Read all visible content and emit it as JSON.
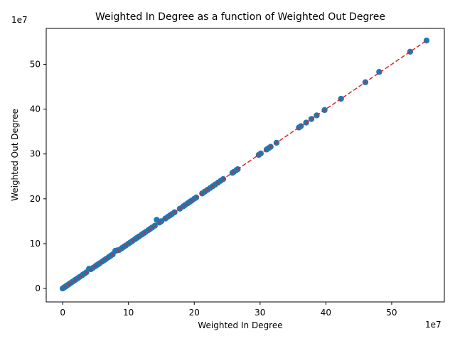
{
  "chart_data": {
    "type": "scatter",
    "title": "Weighted In Degree as a function of Weighted Out Degree",
    "xlabel": "Weighted In Degree",
    "ylabel": "Weighted Out Degree",
    "x_offset_text": "1e7",
    "y_offset_text": "1e7",
    "xlim": [
      -0.25,
      5.8
    ],
    "ylim": [
      -0.3,
      5.8
    ],
    "x_ticks": [
      0,
      1,
      2,
      3,
      4,
      5
    ],
    "y_ticks": [
      0,
      1,
      2,
      3,
      4,
      5
    ],
    "x_tick_labels": [
      "0",
      "10",
      "20",
      "30",
      "40",
      "50"
    ],
    "y_tick_labels": [
      "0",
      "10",
      "20",
      "30",
      "40",
      "50"
    ],
    "grid": false,
    "marker_color": "#1f77b4",
    "fit_line": {
      "x": [
        0.0,
        5.53
      ],
      "y": [
        0.0,
        5.53
      ],
      "color": "#d62728",
      "style": "dashed"
    },
    "points": {
      "x": [
        0.0,
        0.01,
        0.02,
        0.03,
        0.04,
        0.05,
        0.06,
        0.08,
        0.1,
        0.12,
        0.15,
        0.18,
        0.2,
        0.23,
        0.26,
        0.3,
        0.33,
        0.36,
        0.4,
        0.43,
        0.46,
        0.5,
        0.53,
        0.56,
        0.6,
        0.63,
        0.66,
        0.7,
        0.73,
        0.76,
        0.8,
        0.83,
        0.86,
        0.9,
        0.93,
        0.96,
        1.0,
        1.03,
        1.06,
        1.1,
        1.13,
        1.16,
        1.2,
        1.23,
        1.26,
        1.3,
        1.33,
        1.36,
        1.4,
        1.43,
        1.47,
        1.5,
        1.56,
        1.6,
        1.63,
        1.66,
        1.7,
        1.78,
        1.83,
        1.86,
        1.9,
        1.93,
        1.96,
        2.0,
        2.03,
        2.12,
        2.16,
        2.2,
        2.24,
        2.28,
        2.32,
        2.36,
        2.4,
        2.44,
        2.58,
        2.6,
        2.64,
        2.66,
        2.98,
        3.01,
        3.1,
        3.13,
        3.16,
        3.25,
        3.59,
        3.62,
        3.7,
        3.78,
        3.86,
        3.98,
        4.23,
        4.6,
        4.81,
        5.28,
        5.53
      ],
      "y": [
        0.0,
        0.01,
        0.02,
        0.03,
        0.04,
        0.05,
        0.06,
        0.08,
        0.1,
        0.12,
        0.15,
        0.18,
        0.2,
        0.23,
        0.26,
        0.3,
        0.33,
        0.36,
        0.44,
        0.43,
        0.46,
        0.5,
        0.53,
        0.56,
        0.6,
        0.63,
        0.66,
        0.7,
        0.73,
        0.76,
        0.84,
        0.85,
        0.86,
        0.9,
        0.93,
        0.96,
        1.0,
        1.03,
        1.06,
        1.1,
        1.13,
        1.16,
        1.2,
        1.23,
        1.26,
        1.3,
        1.33,
        1.36,
        1.4,
        1.53,
        1.47,
        1.5,
        1.56,
        1.6,
        1.63,
        1.66,
        1.7,
        1.78,
        1.83,
        1.86,
        1.9,
        1.93,
        1.96,
        2.0,
        2.03,
        2.12,
        2.16,
        2.2,
        2.24,
        2.28,
        2.32,
        2.36,
        2.4,
        2.44,
        2.58,
        2.6,
        2.64,
        2.66,
        2.98,
        3.01,
        3.1,
        3.13,
        3.16,
        3.25,
        3.59,
        3.62,
        3.7,
        3.78,
        3.86,
        3.98,
        4.23,
        4.6,
        4.83,
        5.28,
        5.53
      ]
    }
  }
}
